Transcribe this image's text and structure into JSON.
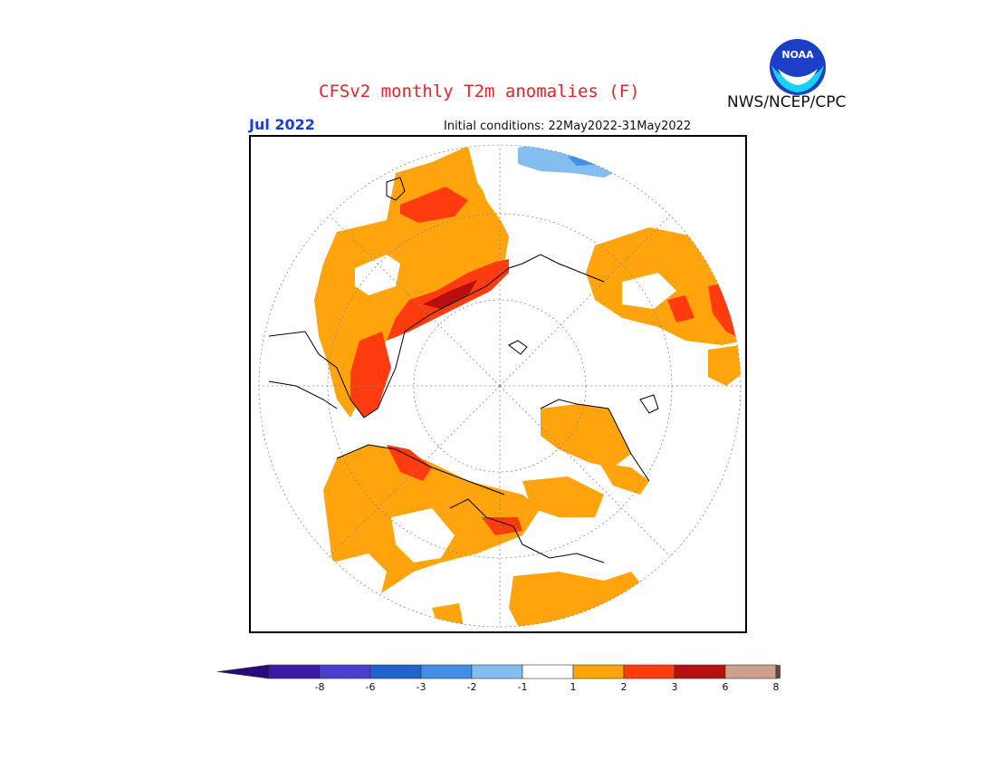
{
  "header": {
    "title": "CFSv2 monthly T2m anomalies (F)",
    "agency": "NWS/NCEP/CPC",
    "month": "Jul 2022",
    "initial_conditions": "Initial conditions: 22May2022-31May2022",
    "logo_text": "NOAA"
  },
  "legend": {
    "bins": [
      {
        "color": "#3c1aa8",
        "label": "-8"
      },
      {
        "color": "#4a3fd0",
        "label": "-6"
      },
      {
        "color": "#1e63d0",
        "label": "-3"
      },
      {
        "color": "#3f8fe6",
        "label": "-2"
      },
      {
        "color": "#84bdf0",
        "label": "-1"
      },
      {
        "color": "#ffffff",
        "label": "1"
      },
      {
        "color": "#ffa40d",
        "label": "2"
      },
      {
        "color": "#ff3b10",
        "label": "3"
      },
      {
        "color": "#b50f10",
        "label": "6"
      },
      {
        "color": "#cda08c",
        "label": "8"
      },
      {
        "color": "#7a5244",
        "label": ""
      }
    ],
    "low_arrow_color": "#2a0a7a",
    "high_arrow_color": "#6b4a3c"
  },
  "colors": {
    "title_red": "#e8232a",
    "month_blue": "#1a3fd6",
    "anomaly_1_2": "#ffa40d",
    "anomaly_2_3": "#ff3b10",
    "anomaly_3_6": "#b50f10",
    "anomaly_neg": "#84bdf0"
  }
}
